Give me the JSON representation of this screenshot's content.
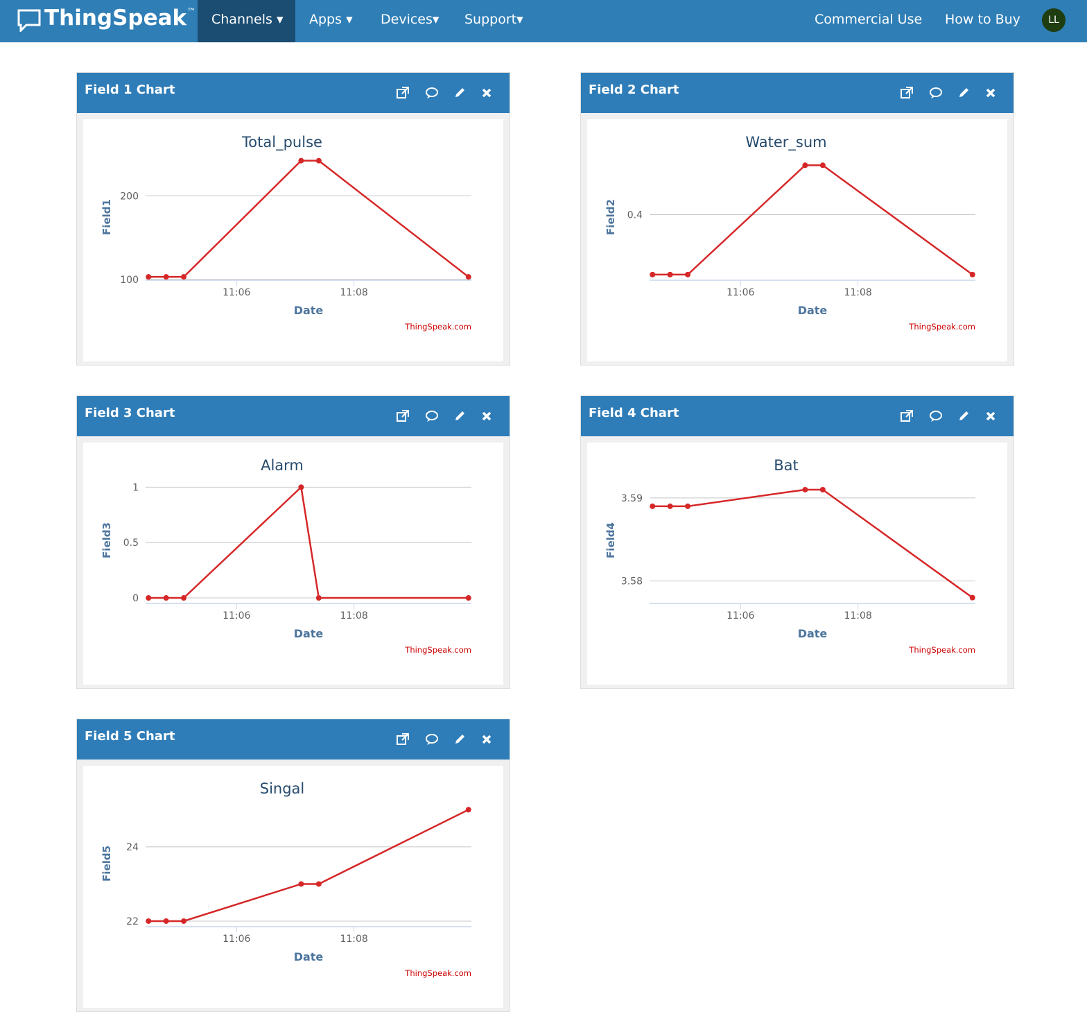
{
  "nav": {
    "brand": "ThingSpeak",
    "brand_mark": "™",
    "items": [
      "Channels",
      "Apps",
      "Devices",
      "Support"
    ],
    "right": [
      "Commercial Use",
      "How to Buy"
    ],
    "avatar": "LL"
  },
  "chart_data": [
    {
      "panel_title": "Field 1 Chart",
      "type": "line",
      "title": "Total_pulse",
      "xlabel": "Date",
      "ylabel": "Field1",
      "credit": "ThingSpeak.com",
      "color": "#d62728",
      "x": [
        664.5,
        664.8,
        665.1,
        667.1,
        667.4,
        669.95
      ],
      "xlim": [
        664.45,
        670.0
      ],
      "xticks": [
        {
          "value": 666,
          "label": "11:06"
        },
        {
          "value": 668,
          "label": "11:08"
        }
      ],
      "values": [
        103,
        103,
        103,
        242,
        242,
        103
      ],
      "ylim": [
        99,
        250
      ],
      "yticks": [
        100,
        200
      ],
      "grid": true
    },
    {
      "panel_title": "Field 2 Chart",
      "type": "line",
      "title": "Water_sum",
      "xlabel": "Date",
      "ylabel": "Field2",
      "credit": "ThingSpeak.com",
      "color": "#d62728",
      "x": [
        664.5,
        664.8,
        665.1,
        667.1,
        667.4,
        669.95
      ],
      "xlim": [
        664.45,
        670.0
      ],
      "xticks": [
        {
          "value": 666,
          "label": "11:06"
        },
        {
          "value": 668,
          "label": "11:08"
        }
      ],
      "values": [
        0.23,
        0.23,
        0.23,
        0.54,
        0.54,
        0.23
      ],
      "ylim": [
        0.214,
        0.572
      ],
      "yticks": [
        0.4
      ],
      "grid": true
    },
    {
      "panel_title": "Field 3 Chart",
      "type": "line",
      "title": "Alarm",
      "xlabel": "Date",
      "ylabel": "Field3",
      "credit": "ThingSpeak.com",
      "color": "#d62728",
      "x": [
        664.5,
        664.8,
        665.1,
        667.1,
        667.4,
        669.95
      ],
      "xlim": [
        664.45,
        670.0
      ],
      "xticks": [
        {
          "value": 666,
          "label": "11:06"
        },
        {
          "value": 668,
          "label": "11:08"
        }
      ],
      "values": [
        0,
        0,
        0,
        1,
        0,
        0
      ],
      "ylim": [
        -0.05,
        1.09
      ],
      "yticks": [
        0,
        0.5,
        1
      ],
      "grid": true
    },
    {
      "panel_title": "Field 4 Chart",
      "type": "line",
      "title": "Bat",
      "xlabel": "Date",
      "ylabel": "Field4",
      "credit": "ThingSpeak.com",
      "color": "#d62728",
      "x": [
        664.5,
        664.8,
        665.1,
        667.1,
        667.4,
        669.95
      ],
      "xlim": [
        664.45,
        670.0
      ],
      "xticks": [
        {
          "value": 666,
          "label": "11:06"
        },
        {
          "value": 668,
          "label": "11:08"
        }
      ],
      "values": [
        3.589,
        3.589,
        3.589,
        3.591,
        3.591,
        3.578
      ],
      "ylim": [
        3.5773,
        3.5925
      ],
      "yticks": [
        3.58,
        3.59
      ],
      "grid": true
    },
    {
      "panel_title": "Field 5 Chart",
      "type": "line",
      "title": "Singal",
      "xlabel": "Date",
      "ylabel": "Field5",
      "credit": "ThingSpeak.com",
      "color": "#d62728",
      "x": [
        664.5,
        664.8,
        665.1,
        667.1,
        667.4,
        669.95
      ],
      "xlim": [
        664.45,
        670.0
      ],
      "xticks": [
        {
          "value": 666,
          "label": "11:06"
        },
        {
          "value": 668,
          "label": "11:08"
        }
      ],
      "values": [
        22,
        22,
        22,
        23,
        23,
        25
      ],
      "ylim": [
        21.85,
        25.25
      ],
      "yticks": [
        22,
        24
      ],
      "grid": true
    }
  ]
}
